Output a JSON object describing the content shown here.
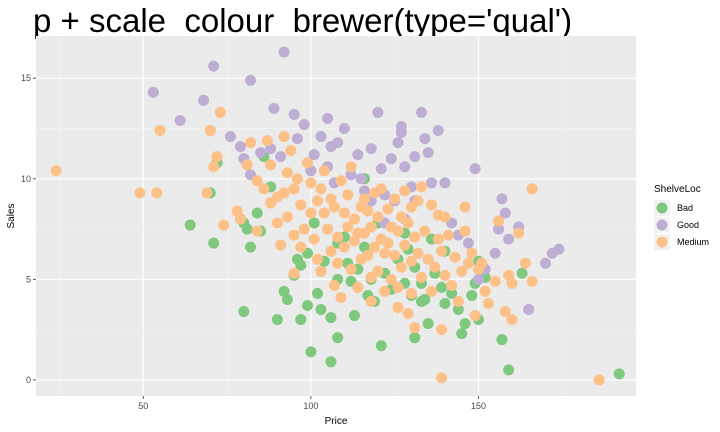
{
  "chart_data": {
    "type": "scatter",
    "title": "p + scale_colour_brewer(type='qual')",
    "xlabel": "Price",
    "ylabel": "Sales",
    "xlim": [
      18,
      197
    ],
    "ylim": [
      -0.8,
      17.1
    ],
    "xticks": [
      50,
      100,
      150
    ],
    "yticks": [
      0,
      5,
      10,
      15
    ],
    "grid": true,
    "legend": {
      "title": "ShelveLoc",
      "placement": "right"
    },
    "series": [
      {
        "name": "Bad",
        "color": "#7fc97f",
        "points": [
          [
            64,
            7.7
          ],
          [
            70,
            9.3
          ],
          [
            71,
            6.8
          ],
          [
            72,
            10.8
          ],
          [
            79,
            8.0
          ],
          [
            80,
            7.8
          ],
          [
            81,
            7.5
          ],
          [
            80,
            3.4
          ],
          [
            82,
            6.6
          ],
          [
            84,
            8.3
          ],
          [
            86,
            11.1
          ],
          [
            85,
            7.4
          ],
          [
            88,
            9.6
          ],
          [
            90,
            3.0
          ],
          [
            92,
            4.4
          ],
          [
            93,
            4.0
          ],
          [
            96,
            6.0
          ],
          [
            97,
            5.7
          ],
          [
            95,
            5.2
          ],
          [
            99,
            3.7
          ],
          [
            97,
            3.0
          ],
          [
            101,
            7.8
          ],
          [
            99,
            6.3
          ],
          [
            104,
            5.9
          ],
          [
            103,
            5.4
          ],
          [
            102,
            4.3
          ],
          [
            103,
            3.5
          ],
          [
            106,
            3.1
          ],
          [
            108,
            5.0
          ],
          [
            108,
            6.8
          ],
          [
            110,
            7.1
          ],
          [
            111,
            5.8
          ],
          [
            112,
            4.9
          ],
          [
            108,
            2.1
          ],
          [
            113,
            3.2
          ],
          [
            114,
            5.5
          ],
          [
            116,
            6.6
          ],
          [
            117,
            4.2
          ],
          [
            118,
            5.0
          ],
          [
            116,
            10.0
          ],
          [
            119,
            3.9
          ],
          [
            120,
            7.8
          ],
          [
            122,
            5.3
          ],
          [
            121,
            1.7
          ],
          [
            124,
            4.5
          ],
          [
            126,
            6.0
          ],
          [
            128,
            4.8
          ],
          [
            128,
            7.3
          ],
          [
            129,
            6.5
          ],
          [
            130,
            4.2
          ],
          [
            131,
            5.6
          ],
          [
            133,
            4.8
          ],
          [
            133,
            3.9
          ],
          [
            134,
            4.0
          ],
          [
            131,
            2.1
          ],
          [
            135,
            2.8
          ],
          [
            136,
            7.0
          ],
          [
            137,
            5.3
          ],
          [
            139,
            4.6
          ],
          [
            140,
            3.8
          ],
          [
            140,
            6.4
          ],
          [
            142,
            4.3
          ],
          [
            144,
            3.5
          ],
          [
            145,
            2.3
          ],
          [
            146,
            2.8
          ],
          [
            148,
            4.2
          ],
          [
            149,
            4.8
          ],
          [
            150,
            3.0
          ],
          [
            152,
            5.1
          ],
          [
            157,
            2.0
          ],
          [
            159,
            0.5
          ],
          [
            163,
            5.3
          ],
          [
            106,
            0.9
          ],
          [
            100,
            1.4
          ],
          [
            192,
            0.3
          ],
          [
            150,
            5.9
          ]
        ]
      },
      {
        "name": "Good",
        "color": "#beaed4",
        "points": [
          [
            53,
            14.3
          ],
          [
            61,
            12.9
          ],
          [
            68,
            13.9
          ],
          [
            71,
            15.6
          ],
          [
            76,
            12.1
          ],
          [
            79,
            11.6
          ],
          [
            80,
            11.0
          ],
          [
            82,
            14.9
          ],
          [
            82,
            10.2
          ],
          [
            85,
            11.3
          ],
          [
            88,
            11.5
          ],
          [
            89,
            13.5
          ],
          [
            92,
            16.3
          ],
          [
            91,
            11.1
          ],
          [
            95,
            13.2
          ],
          [
            96,
            12.0
          ],
          [
            98,
            12.7
          ],
          [
            101,
            11.2
          ],
          [
            100,
            10.4
          ],
          [
            103,
            12.1
          ],
          [
            105,
            13.0
          ],
          [
            105,
            10.6
          ],
          [
            106,
            11.6
          ],
          [
            107,
            9.8
          ],
          [
            108,
            11.8
          ],
          [
            110,
            12.5
          ],
          [
            112,
            10.2
          ],
          [
            114,
            11.2
          ],
          [
            115,
            10.0
          ],
          [
            116,
            9.4
          ],
          [
            118,
            8.9
          ],
          [
            118,
            11.5
          ],
          [
            120,
            13.3
          ],
          [
            121,
            10.5
          ],
          [
            122,
            9.2
          ],
          [
            124,
            11.0
          ],
          [
            125,
            8.9
          ],
          [
            126,
            11.8
          ],
          [
            127,
            12.3
          ],
          [
            127,
            12.6
          ],
          [
            128,
            10.6
          ],
          [
            128,
            8.0
          ],
          [
            130,
            9.6
          ],
          [
            131,
            8.9
          ],
          [
            131,
            11.1
          ],
          [
            133,
            13.3
          ],
          [
            134,
            12.0
          ],
          [
            135,
            11.3
          ],
          [
            136,
            9.8
          ],
          [
            138,
            12.4
          ],
          [
            140,
            9.8
          ],
          [
            142,
            7.8
          ],
          [
            144,
            7.2
          ],
          [
            147,
            6.8
          ],
          [
            149,
            10.5
          ],
          [
            150,
            5.0
          ],
          [
            152,
            5.5
          ],
          [
            155,
            6.3
          ],
          [
            156,
            7.5
          ],
          [
            157,
            9.0
          ],
          [
            158,
            8.3
          ],
          [
            159,
            7.0
          ],
          [
            162,
            7.6
          ],
          [
            165,
            3.5
          ],
          [
            170,
            5.8
          ],
          [
            172,
            6.3
          ],
          [
            174,
            6.5
          ],
          [
            122,
            7.8
          ]
        ]
      },
      {
        "name": "Medium",
        "color": "#fdc086",
        "points": [
          [
            24,
            10.4
          ],
          [
            49,
            9.3
          ],
          [
            54,
            9.3
          ],
          [
            55,
            12.4
          ],
          [
            69,
            9.3
          ],
          [
            70,
            12.4
          ],
          [
            71,
            10.6
          ],
          [
            72,
            11.1
          ],
          [
            73,
            13.3
          ],
          [
            74,
            7.7
          ],
          [
            78,
            8.4
          ],
          [
            79,
            8.0
          ],
          [
            81,
            10.7
          ],
          [
            82,
            11.8
          ],
          [
            84,
            9.9
          ],
          [
            84,
            7.4
          ],
          [
            86,
            9.5
          ],
          [
            87,
            11.9
          ],
          [
            88,
            8.8
          ],
          [
            88,
            10.7
          ],
          [
            90,
            9.1
          ],
          [
            90,
            7.8
          ],
          [
            91,
            6.7
          ],
          [
            92,
            9.3
          ],
          [
            92,
            12.1
          ],
          [
            93,
            8.1
          ],
          [
            93,
            10.3
          ],
          [
            94,
            11.4
          ],
          [
            95,
            7.2
          ],
          [
            95,
            9.5
          ],
          [
            96,
            10.0
          ],
          [
            97,
            8.7
          ],
          [
            97,
            6.6
          ],
          [
            98,
            7.5
          ],
          [
            99,
            10.8
          ],
          [
            100,
            8.3
          ],
          [
            100,
            9.8
          ],
          [
            101,
            7.0
          ],
          [
            102,
            8.9
          ],
          [
            102,
            6.0
          ],
          [
            103,
            9.5
          ],
          [
            103,
            5.4
          ],
          [
            104,
            8.3
          ],
          [
            104,
            10.4
          ],
          [
            105,
            7.5
          ],
          [
            106,
            6.4
          ],
          [
            106,
            9.0
          ],
          [
            107,
            8.6
          ],
          [
            108,
            7.1
          ],
          [
            108,
            5.8
          ],
          [
            109,
            9.9
          ],
          [
            109,
            4.1
          ],
          [
            110,
            8.3
          ],
          [
            110,
            6.6
          ],
          [
            111,
            7.6
          ],
          [
            111,
            9.2
          ],
          [
            112,
            5.5
          ],
          [
            112,
            10.6
          ],
          [
            113,
            8.0
          ],
          [
            113,
            6.9
          ],
          [
            114,
            7.3
          ],
          [
            114,
            4.6
          ],
          [
            115,
            8.6
          ],
          [
            115,
            6.0
          ],
          [
            116,
            9.0
          ],
          [
            116,
            7.3
          ],
          [
            117,
            6.2
          ],
          [
            117,
            8.4
          ],
          [
            118,
            5.1
          ],
          [
            118,
            7.6
          ],
          [
            119,
            9.3
          ],
          [
            119,
            6.6
          ],
          [
            120,
            8.1
          ],
          [
            120,
            5.4
          ],
          [
            121,
            7.0
          ],
          [
            121,
            9.5
          ],
          [
            122,
            6.3
          ],
          [
            122,
            4.4
          ],
          [
            123,
            8.5
          ],
          [
            123,
            6.8
          ],
          [
            124,
            7.6
          ],
          [
            124,
            5.0
          ],
          [
            125,
            9.0
          ],
          [
            125,
            6.2
          ],
          [
            126,
            7.4
          ],
          [
            126,
            3.6
          ],
          [
            127,
            8.1
          ],
          [
            127,
            5.6
          ],
          [
            128,
            6.7
          ],
          [
            128,
            9.4
          ],
          [
            129,
            7.8
          ],
          [
            129,
            3.3
          ],
          [
            130,
            8.6
          ],
          [
            130,
            5.9
          ],
          [
            131,
            7.1
          ],
          [
            131,
            2.6
          ],
          [
            132,
            8.9
          ],
          [
            132,
            6.3
          ],
          [
            133,
            9.6
          ],
          [
            133,
            5.1
          ],
          [
            134,
            7.4
          ],
          [
            135,
            6.0
          ],
          [
            136,
            8.7
          ],
          [
            136,
            4.4
          ],
          [
            137,
            5.6
          ],
          [
            138,
            8.2
          ],
          [
            138,
            7.0
          ],
          [
            139,
            6.4
          ],
          [
            139,
            2.5
          ],
          [
            140,
            8.1
          ],
          [
            140,
            5.2
          ],
          [
            141,
            7.2
          ],
          [
            142,
            4.7
          ],
          [
            143,
            6.1
          ],
          [
            144,
            3.9
          ],
          [
            145,
            5.4
          ],
          [
            146,
            8.6
          ],
          [
            146,
            7.4
          ],
          [
            147,
            5.8
          ],
          [
            148,
            6.3
          ],
          [
            149,
            3.2
          ],
          [
            150,
            5.5
          ],
          [
            151,
            5.8
          ],
          [
            152,
            4.4
          ],
          [
            153,
            3.8
          ],
          [
            155,
            4.9
          ],
          [
            156,
            7.9
          ],
          [
            158,
            3.4
          ],
          [
            159,
            5.2
          ],
          [
            160,
            4.8
          ],
          [
            160,
            3.0
          ],
          [
            162,
            7.3
          ],
          [
            164,
            5.8
          ],
          [
            166,
            9.5
          ],
          [
            166,
            4.9
          ],
          [
            139,
            0.1
          ],
          [
            186,
            0.0
          ],
          [
            130,
            4.3
          ],
          [
            126,
            4.6
          ],
          [
            118,
            3.9
          ],
          [
            95,
            5.3
          ],
          [
            107,
            4.7
          ]
        ]
      }
    ]
  }
}
